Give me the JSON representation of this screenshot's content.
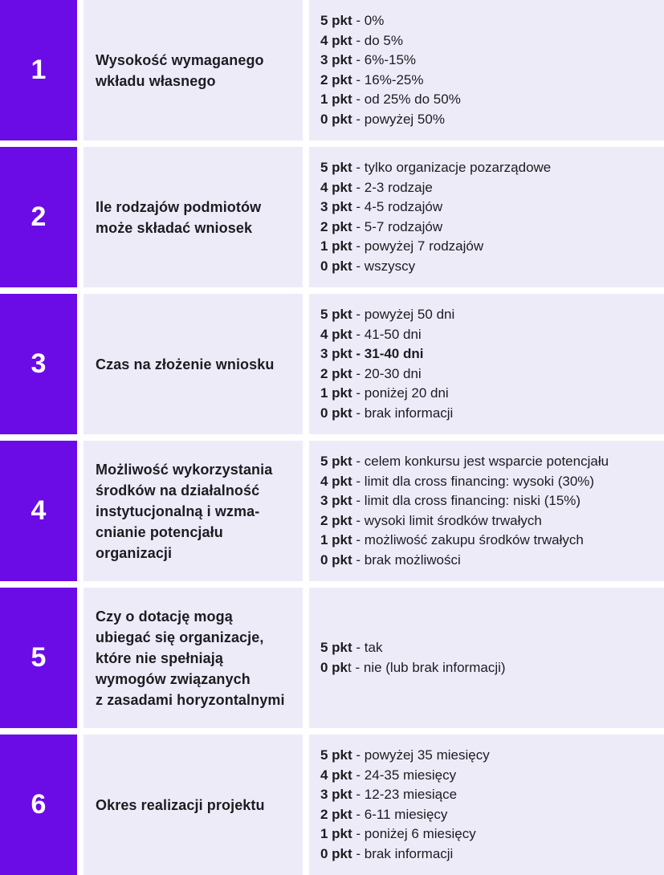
{
  "colors": {
    "accent_purple": "#6b0ce7",
    "cell_lavender": "#eeebf9",
    "text_dark": "#1c1c21",
    "number_white": "#ffffff",
    "gap_white": "#ffffff"
  },
  "table": {
    "rows": [
      {
        "number": "1",
        "criterion": "Wysokość wymaganego\nwkładu własnego",
        "points": [
          {
            "label": "5 pkt",
            "text": " - 0%"
          },
          {
            "label": "4 pkt",
            "text": " - do 5%"
          },
          {
            "label": "3 pkt",
            "text": " - 6%-15%"
          },
          {
            "label": "2 pkt",
            "text": " - 16%-25%"
          },
          {
            "label": "1 pkt",
            "text": " - od 25% do 50%"
          },
          {
            "label": "0 pkt",
            "text": " - powyżej 50%"
          }
        ]
      },
      {
        "number": "2",
        "criterion": "Ile rodzajów podmiotów\nmoże składać wniosek",
        "points": [
          {
            "label": "5 pkt",
            "text": " - tylko organizacje pozarządowe"
          },
          {
            "label": "4 pkt",
            "text": " - 2-3 rodzaje"
          },
          {
            "label": "3 pkt",
            "text": " - 4-5 rodzajów"
          },
          {
            "label": "2 pkt",
            "text": " - 5-7 rodzajów"
          },
          {
            "label": "1 pkt",
            "text": " - powyżej 7 rodzajów"
          },
          {
            "label": "0 pkt",
            "text": " - wszyscy"
          }
        ]
      },
      {
        "number": "3",
        "criterion": "Czas na złożenie wniosku",
        "points": [
          {
            "label": "5 pkt",
            "text": " - powyżej 50 dni"
          },
          {
            "label": "4 pkt",
            "text": " - 41-50 dni"
          },
          {
            "label": "3 pkt - 31-40 dni",
            "text": ""
          },
          {
            "label": "2 pkt",
            "text": " - 20-30 dni"
          },
          {
            "label": "1 pkt",
            "text": " - poniżej 20 dni"
          },
          {
            "label": "0 pkt",
            "text": " - brak informacji"
          }
        ]
      },
      {
        "number": "4",
        "criterion": "Możliwość wykorzystania\nśrodków na działalność\ninstytucjonalną i wzma-\ncnianie potencjału\norganizacji",
        "points": [
          {
            "label": "5 pkt",
            "text": " - celem konkursu jest wsparcie potencjału"
          },
          {
            "label": "4 pkt",
            "text": " - limit dla cross financing: wysoki (30%)"
          },
          {
            "label": "3 pkt",
            "text": " - limit dla cross financing: niski (15%)"
          },
          {
            "label": "2 pkt",
            "text": " - wysoki limit środków trwałych"
          },
          {
            "label": "1 pkt",
            "text": " - możliwość zakupu środków trwałych"
          },
          {
            "label": "0 pkt",
            "text": " - brak możliwości"
          }
        ]
      },
      {
        "number": "5",
        "criterion": "Czy o dotację mogą\nubiegać się organizacje,\nktóre nie spełniają\nwymogów związanych\nz zasadami horyzontalnymi",
        "points": [
          {
            "label": "5 pkt",
            "text": " - tak"
          },
          {
            "label": "0 pk",
            "text": "t - nie (lub brak informacji)"
          }
        ]
      },
      {
        "number": "6",
        "criterion": "Okres realizacji projektu",
        "points": [
          {
            "label": "5 pkt",
            "text": " - powyżej 35 miesięcy"
          },
          {
            "label": "4 pkt",
            "text": " - 24-35 miesięcy"
          },
          {
            "label": "3 pkt",
            "text": " - 12-23 miesiące"
          },
          {
            "label": "2 pkt",
            "text": " - 6-11 miesięcy"
          },
          {
            "label": "1 pkt",
            "text": " - poniżej 6 miesięcy"
          },
          {
            "label": "0 pkt",
            "text": " - brak informacji"
          }
        ]
      }
    ]
  }
}
